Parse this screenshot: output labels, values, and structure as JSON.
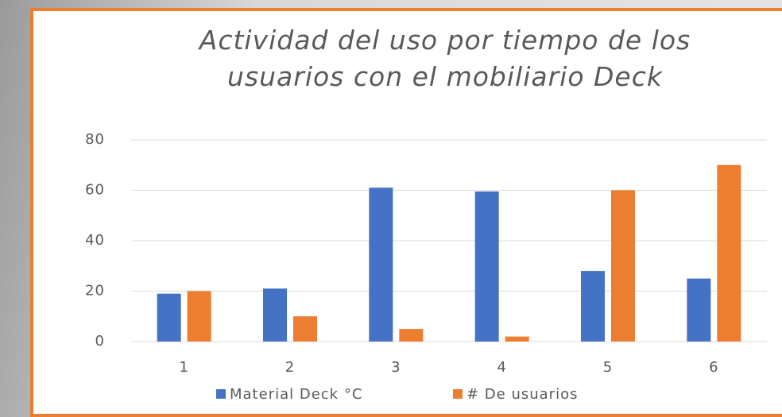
{
  "chart_data": {
    "type": "bar",
    "title": "Actividad del uso por tiempo de los usuarios con el mobiliario Deck",
    "categories": [
      "1",
      "2",
      "3",
      "4",
      "5",
      "6"
    ],
    "series": [
      {
        "name": "Material Deck °C",
        "color": "#4472c4",
        "values": [
          19,
          21,
          61,
          59.5,
          28,
          25
        ]
      },
      {
        "name": "# De usuarios",
        "color": "#ed7d31",
        "values": [
          20,
          10,
          5,
          2,
          60,
          70
        ]
      }
    ],
    "ylim": [
      0,
      80
    ],
    "yticks": [
      0,
      20,
      40,
      60,
      80
    ],
    "grid": true,
    "legend": "bottom"
  }
}
